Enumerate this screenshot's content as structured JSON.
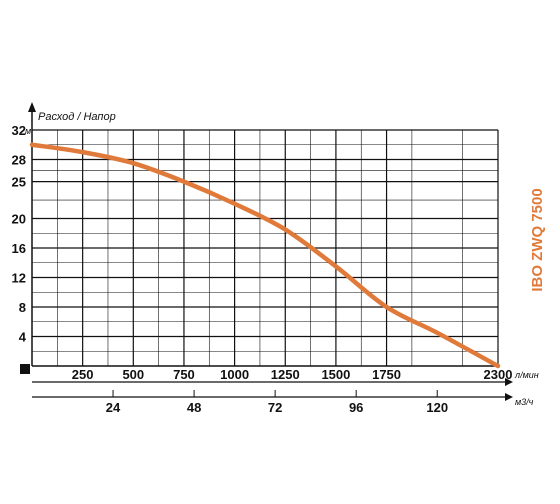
{
  "chart_data": {
    "type": "line",
    "title": "",
    "ylabel": "Расход / Напор",
    "y_unit": "м",
    "x_unit": "л/мин",
    "x2_unit": "м3/ч",
    "model_label": "IBO ZWQ 7500",
    "xlim": [
      0,
      2300
    ],
    "ylim": [
      0,
      32
    ],
    "x_ticks": [
      "250",
      "500",
      "750",
      "1000",
      "1250",
      "1500",
      "1750",
      "2300"
    ],
    "x2_ticks": [
      "24",
      "48",
      "72",
      "96",
      "120"
    ],
    "y_ticks": [
      "4",
      "8",
      "12",
      "16",
      "20",
      "25",
      "28",
      "32"
    ],
    "series": [
      {
        "x": [
          0,
          250,
          500,
          750,
          1000,
          1250,
          1500,
          1750,
          2000,
          2300
        ],
        "y": [
          30,
          29,
          27.5,
          25,
          22,
          18.5,
          13.5,
          8,
          4.5,
          0
        ]
      }
    ],
    "grid": true,
    "colors": {
      "curve": "#e07a3a",
      "grid": "#111111",
      "model": "#e07a3a"
    }
  }
}
